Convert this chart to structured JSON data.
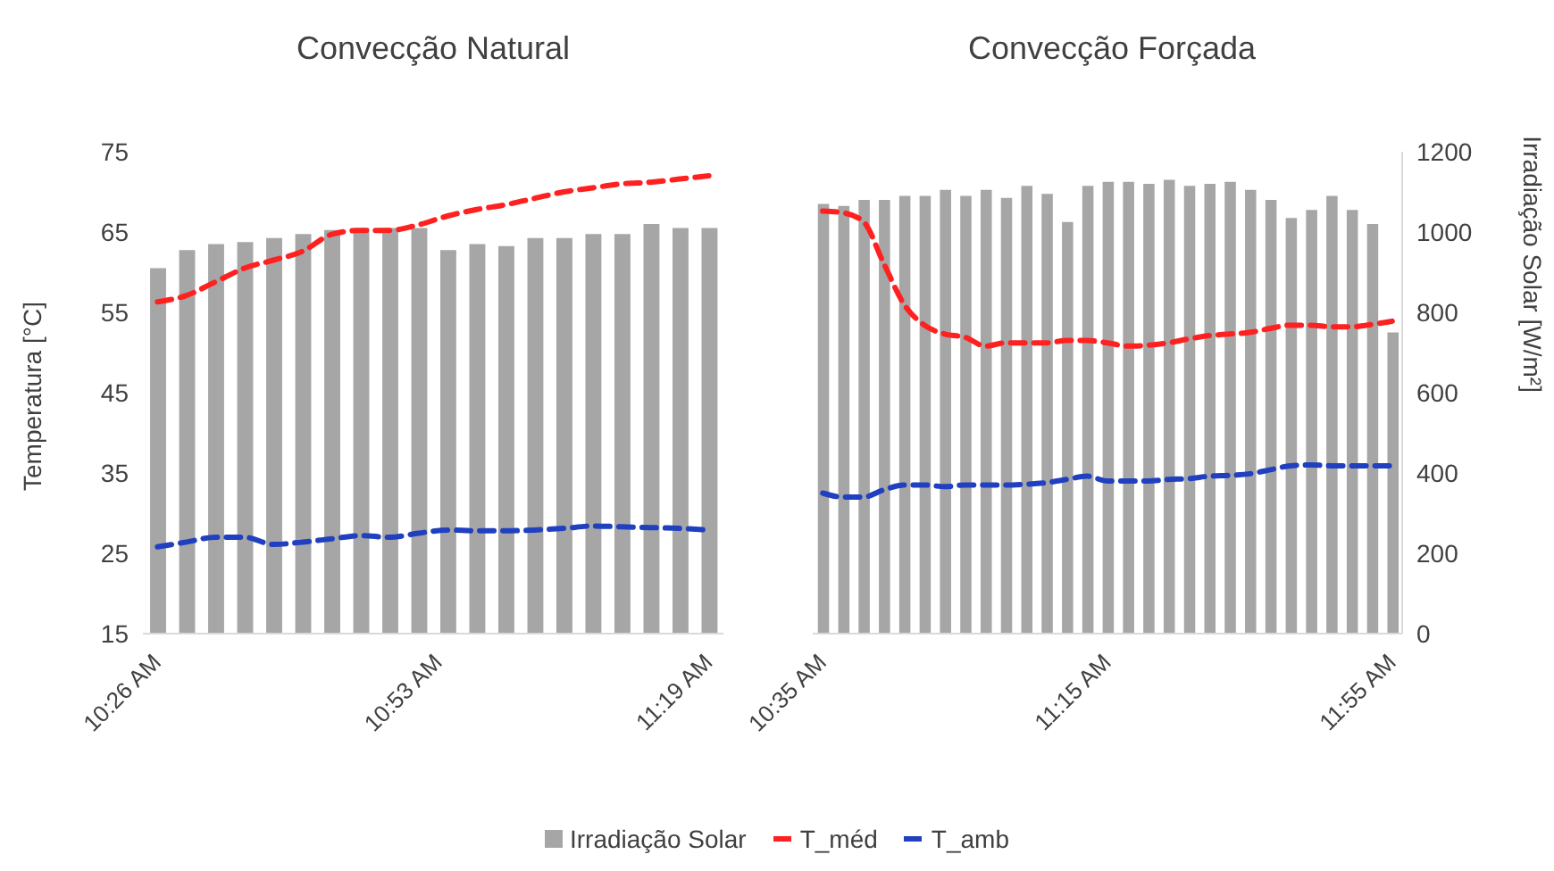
{
  "chart_data": [
    {
      "type": "bar",
      "title": "Convecção Natural",
      "ylabel": "Temperatura [°C]",
      "x": [
        10.4333,
        10.4798,
        10.5263,
        10.5728,
        10.6193,
        10.6658,
        10.7123,
        10.7588,
        10.8053,
        10.8518,
        10.8982,
        10.9447,
        10.9912,
        11.0377,
        11.0842,
        11.1307,
        11.1772,
        11.2237,
        11.2702,
        11.3167
      ],
      "xlim": [
        10.41,
        11.34
      ],
      "xticks": [
        {
          "value": 10.4333,
          "label": "10:26 AM"
        },
        {
          "value": 10.8833,
          "label": "10:53 AM"
        },
        {
          "value": 11.3167,
          "label": "11:19 AM"
        }
      ],
      "ylim": [
        15,
        75
      ],
      "yticks": [
        15,
        25,
        35,
        45,
        55,
        65,
        75
      ],
      "y2lim": [
        0,
        1200
      ],
      "tick_labels": "xy",
      "series": [
        {
          "name": "Irradiação Solar",
          "axis": "y2",
          "color": "#a6a6a6",
          "values": [
            910,
            955,
            970,
            975,
            985,
            995,
            1005,
            1010,
            1010,
            1010,
            955,
            970,
            965,
            985,
            985,
            995,
            995,
            1020,
            1010,
            1010
          ]
        },
        {
          "name": "T_méd",
          "type": "line",
          "color": "#ff2020",
          "line_style": "dashed",
          "values": [
            56.3,
            57.1,
            58.8,
            60.5,
            61.5,
            62.6,
            64.7,
            65.2,
            65.2,
            65.9,
            67,
            67.8,
            68.4,
            69.2,
            70,
            70.5,
            71,
            71.2,
            71.6,
            72
          ]
        },
        {
          "name": "T_amb",
          "type": "line",
          "color": "#2040c0",
          "line_style": "dashed",
          "values": [
            25.8,
            26.4,
            27,
            27,
            26.1,
            26.4,
            26.8,
            27.2,
            27,
            27.5,
            27.9,
            27.8,
            27.8,
            27.9,
            28.1,
            28.4,
            28.3,
            28.2,
            28.1,
            27.9
          ]
        }
      ],
      "marker": "none",
      "grid": false,
      "legend": "bottom"
    },
    {
      "type": "bar",
      "title": "Convecção Forçada",
      "y2label": "Irradiação Solar [W/m²]",
      "x": [
        10.5833,
        10.631,
        10.6786,
        10.7262,
        10.7738,
        10.8214,
        10.869,
        10.9167,
        10.9643,
        11.0119,
        11.0595,
        11.1071,
        11.1548,
        11.2024,
        11.25,
        11.2976,
        11.3452,
        11.3929,
        11.4405,
        11.4881,
        11.5357,
        11.5833,
        11.631,
        11.6786,
        11.7262,
        11.7738,
        11.8214,
        11.869,
        11.9167
      ],
      "xlim": [
        10.56,
        11.94
      ],
      "xticks": [
        {
          "value": 10.5833,
          "label": "10:35 AM"
        },
        {
          "value": 11.25,
          "label": "11:15 AM"
        },
        {
          "value": 11.9167,
          "label": "11:55 AM"
        }
      ],
      "ylim": [
        15,
        75
      ],
      "y2lim": [
        0,
        1200
      ],
      "y2ticks": [
        0,
        200,
        400,
        600,
        800,
        1000,
        1200
      ],
      "tick_labels": "xy2",
      "series": [
        {
          "name": "Irradiação Solar",
          "axis": "y2",
          "color": "#a6a6a6",
          "values": [
            1070,
            1065,
            1080,
            1080,
            1090,
            1090,
            1105,
            1090,
            1105,
            1085,
            1115,
            1095,
            1025,
            1115,
            1125,
            1125,
            1120,
            1130,
            1115,
            1120,
            1125,
            1105,
            1080,
            1035,
            1055,
            1090,
            1055,
            1020,
            750
          ]
        },
        {
          "name": "T_méd",
          "type": "line",
          "color": "#ff2020",
          "line_style": "dashed",
          "values": [
            67.6,
            67.4,
            66.3,
            61.1,
            56,
            53.4,
            52.3,
            51.9,
            50.8,
            51.2,
            51.2,
            51.2,
            51.5,
            51.5,
            51.2,
            50.8,
            50.9,
            51.2,
            51.7,
            52.1,
            52.3,
            52.5,
            53,
            53.4,
            53.4,
            53.2,
            53.2,
            53.5,
            53.9
          ]
        },
        {
          "name": "T_amb",
          "type": "line",
          "color": "#2040c0",
          "line_style": "dashed",
          "values": [
            32.5,
            32,
            32,
            32.9,
            33.5,
            33.5,
            33.3,
            33.5,
            33.5,
            33.5,
            33.6,
            33.8,
            34.2,
            34.6,
            34,
            34,
            34,
            34.2,
            34.3,
            34.6,
            34.7,
            34.9,
            35.4,
            35.9,
            36,
            35.9,
            35.9,
            35.9,
            35.9
          ]
        }
      ],
      "marker": "none",
      "grid": false
    }
  ]
}
